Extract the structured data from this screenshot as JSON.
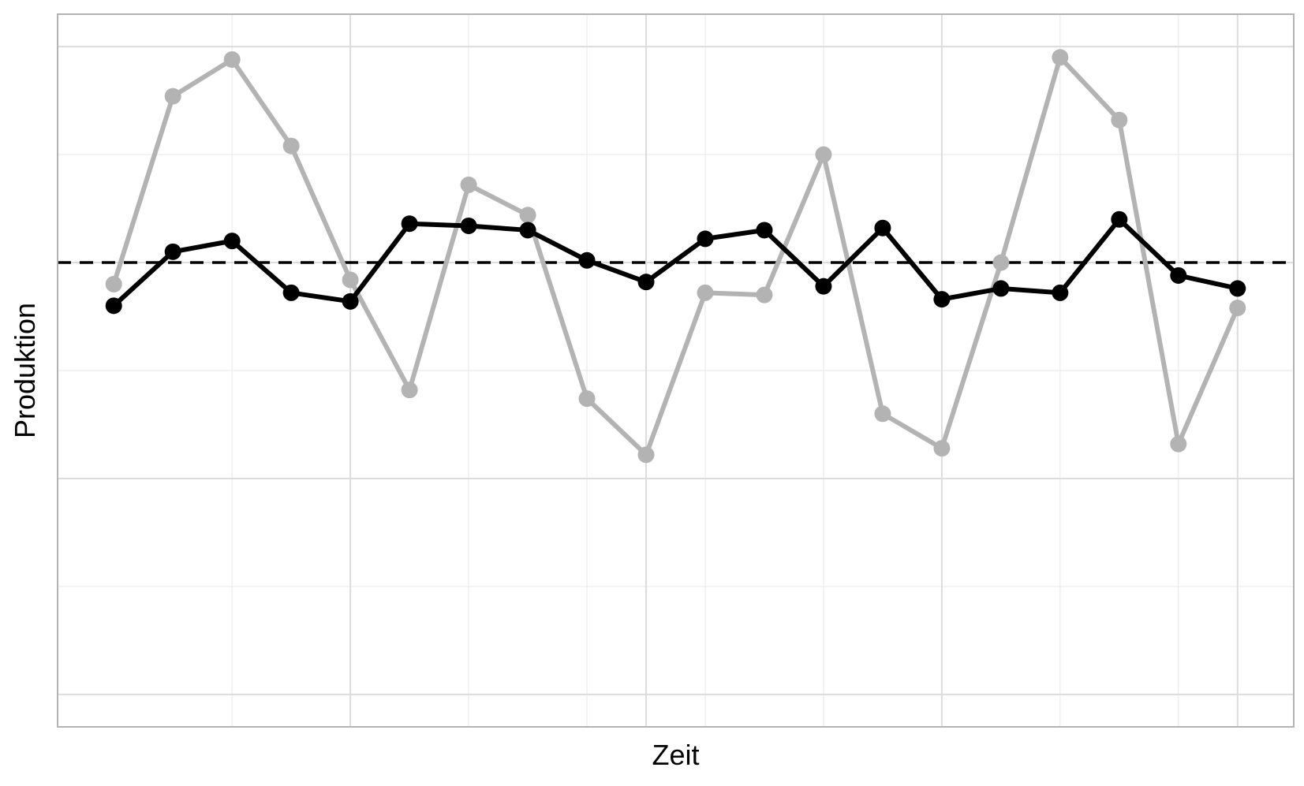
{
  "chart_data": {
    "type": "line",
    "title": "",
    "xlabel": "Zeit",
    "ylabel": "Produktion",
    "x": [
      1,
      2,
      3,
      4,
      5,
      6,
      7,
      8,
      9,
      10,
      11,
      12,
      13,
      14,
      15,
      16,
      17,
      18,
      19,
      20
    ],
    "xlim": [
      0.05,
      20.95
    ],
    "ylim": [
      -2.15,
      1.15
    ],
    "x_gridlines": [
      3,
      5,
      7,
      9,
      11,
      13,
      15,
      17,
      19
    ],
    "x_major": [
      5,
      10,
      15,
      20
    ],
    "y_gridlines": [
      -2,
      -1.5,
      -1,
      -0.5,
      0,
      0.5,
      1
    ],
    "y_major": [
      -2,
      -1,
      0,
      1
    ],
    "reference_line": {
      "y": 0,
      "style": "dashed",
      "color": "#000000"
    },
    "grid": true,
    "series": [
      {
        "color": "#b3b3b3",
        "values": [
          -0.1,
          0.77,
          0.94,
          0.54,
          -0.08,
          -0.59,
          0.36,
          0.22,
          -0.63,
          -0.89,
          -0.14,
          -0.15,
          0.5,
          -0.7,
          -0.86,
          0.0,
          0.95,
          0.66,
          -0.84,
          -0.21
        ]
      },
      {
        "color": "#000000",
        "values": [
          -0.2,
          0.05,
          0.1,
          -0.14,
          -0.18,
          0.18,
          0.17,
          0.15,
          0.01,
          -0.09,
          0.11,
          0.15,
          -0.11,
          0.16,
          -0.17,
          -0.12,
          -0.14,
          0.2,
          -0.06,
          -0.12
        ]
      }
    ]
  }
}
